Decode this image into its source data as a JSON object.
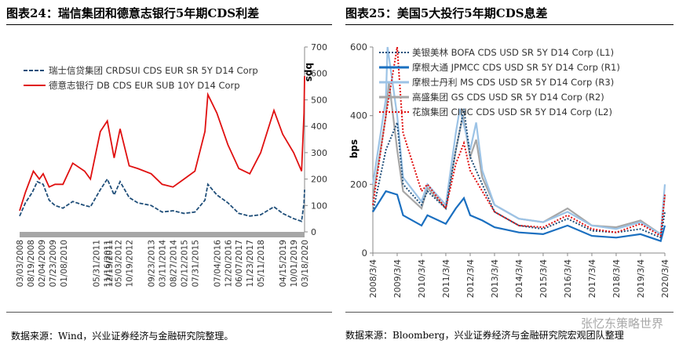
{
  "left": {
    "title": "图表24：瑞信集团和德意志银行5年期CDS利差",
    "source": "数据来源：Wind，兴业证券经济与金融研究院整理。",
    "chart_data": {
      "type": "line",
      "ylabel": "bps",
      "ylim": [
        0,
        700
      ],
      "yticks": [
        0,
        100,
        200,
        300,
        400,
        500,
        600,
        700
      ],
      "xlim": [
        "2008-03-03",
        "2020-03-18"
      ],
      "xticks": [
        "03/03/2008",
        "08/19/2008",
        "02/04/2009",
        "07/23/2009",
        "01/08/2010",
        "12/13/2011",
        "05/31/2011",
        "11/16/2011",
        "05/03/2012",
        "10/19/2012",
        "09/23/2013",
        "03/11/2014",
        "08/27/2014",
        "02/12/2015",
        "07/31/2015",
        "07/04/2016",
        "12/20/2016",
        "06/07/2017",
        "11/23/2017",
        "05/11/2018",
        "04/15/2019",
        "10/01/2019",
        "03/18/2020"
      ],
      "legend_position": "top-left",
      "series": [
        {
          "name": "瑞士信贷集团 CRDSUI CDS EUR SR 5Y D14 Corp",
          "color": "#1f4e79",
          "dash": true,
          "points": [
            [
              "2008-03-03",
              60
            ],
            [
              "2008-06-01",
              110
            ],
            [
              "2008-09-15",
              150
            ],
            [
              "2008-12-01",
              190
            ],
            [
              "2009-03-01",
              180
            ],
            [
              "2009-06-01",
              120
            ],
            [
              "2009-09-01",
              100
            ],
            [
              "2010-01-01",
              90
            ],
            [
              "2010-06-01",
              115
            ],
            [
              "2010-12-01",
              100
            ],
            [
              "2011-03-01",
              95
            ],
            [
              "2011-08-01",
              160
            ],
            [
              "2011-11-16",
              200
            ],
            [
              "2012-03-01",
              140
            ],
            [
              "2012-06-01",
              190
            ],
            [
              "2012-10-19",
              130
            ],
            [
              "2013-03-01",
              110
            ],
            [
              "2013-09-23",
              100
            ],
            [
              "2014-03-11",
              75
            ],
            [
              "2014-08-27",
              80
            ],
            [
              "2015-02-12",
              70
            ],
            [
              "2015-07-31",
              75
            ],
            [
              "2016-01-01",
              120
            ],
            [
              "2016-02-15",
              180
            ],
            [
              "2016-07-04",
              140
            ],
            [
              "2016-12-20",
              110
            ],
            [
              "2017-06-07",
              70
            ],
            [
              "2017-11-23",
              60
            ],
            [
              "2018-05-11",
              65
            ],
            [
              "2018-12-01",
              95
            ],
            [
              "2019-04-15",
              70
            ],
            [
              "2019-10-01",
              50
            ],
            [
              "2020-02-01",
              40
            ],
            [
              "2020-03-10",
              110
            ],
            [
              "2020-03-18",
              160
            ]
          ]
        },
        {
          "name": "德意志银行 DB CDS EUR SUB 10Y D14 Corp",
          "color": "#e01010",
          "dash": false,
          "points": [
            [
              "2008-03-03",
              80
            ],
            [
              "2008-06-01",
              150
            ],
            [
              "2008-10-01",
              230
            ],
            [
              "2009-01-01",
              200
            ],
            [
              "2009-03-01",
              220
            ],
            [
              "2009-06-01",
              170
            ],
            [
              "2009-09-01",
              180
            ],
            [
              "2010-01-01",
              180
            ],
            [
              "2010-06-01",
              260
            ],
            [
              "2010-12-01",
              230
            ],
            [
              "2011-03-01",
              200
            ],
            [
              "2011-08-01",
              380
            ],
            [
              "2011-11-16",
              420
            ],
            [
              "2012-03-01",
              280
            ],
            [
              "2012-06-01",
              390
            ],
            [
              "2012-10-19",
              250
            ],
            [
              "2013-03-01",
              240
            ],
            [
              "2013-09-23",
              220
            ],
            [
              "2014-03-11",
              180
            ],
            [
              "2014-08-27",
              170
            ],
            [
              "2015-02-12",
              200
            ],
            [
              "2015-07-31",
              230
            ],
            [
              "2016-01-01",
              380
            ],
            [
              "2016-02-15",
              520
            ],
            [
              "2016-07-04",
              450
            ],
            [
              "2016-12-20",
              330
            ],
            [
              "2017-06-07",
              240
            ],
            [
              "2017-11-23",
              220
            ],
            [
              "2018-05-11",
              300
            ],
            [
              "2018-12-01",
              460
            ],
            [
              "2019-04-15",
              370
            ],
            [
              "2019-10-01",
              300
            ],
            [
              "2020-02-01",
              230
            ],
            [
              "2020-03-10",
              450
            ],
            [
              "2020-03-18",
              590
            ]
          ]
        }
      ]
    }
  },
  "right": {
    "title": "图表25：美国5大投行5年期CDS息差",
    "source": "数据来源：Bloomberg，兴业证券经济与金融研究院宏观团队整理",
    "watermark": "张忆东策略世界",
    "chart_data": {
      "type": "line",
      "ylabel": "bps",
      "ylim": [
        0,
        600
      ],
      "yticks": [
        0,
        200,
        400,
        600
      ],
      "xlim": [
        "2008-03-04",
        "2020-03-04"
      ],
      "xticks": [
        "2008/3/4",
        "2009/3/4",
        "2010/3/4",
        "2011/3/4",
        "2012/3/4",
        "2013/3/4",
        "2014/3/4",
        "2015/3/4",
        "2016/3/4",
        "2017/3/4",
        "2018/3/4",
        "2019/3/4",
        "2020/3/4"
      ],
      "legend_position": "top-left",
      "series": [
        {
          "name": "美银美林 BOFA CDS USD SR 5Y D14 Corp (L1)",
          "color": "#1f4e79",
          "dash": "dot",
          "points": [
            [
              "2008-03-04",
              120
            ],
            [
              "2008-09-15",
              300
            ],
            [
              "2009-03-04",
              380
            ],
            [
              "2009-06-01",
              200
            ],
            [
              "2010-03-04",
              140
            ],
            [
              "2010-06-01",
              180
            ],
            [
              "2011-03-04",
              130
            ],
            [
              "2011-08-01",
              300
            ],
            [
              "2011-12-01",
              420
            ],
            [
              "2012-03-04",
              280
            ],
            [
              "2012-09-01",
              200
            ],
            [
              "2013-03-04",
              120
            ],
            [
              "2014-03-04",
              80
            ],
            [
              "2015-03-04",
              70
            ],
            [
              "2016-03-04",
              100
            ],
            [
              "2017-03-04",
              65
            ],
            [
              "2018-03-04",
              60
            ],
            [
              "2019-03-04",
              70
            ],
            [
              "2020-01-01",
              45
            ],
            [
              "2020-03-04",
              120
            ]
          ]
        },
        {
          "name": "摩根大通 JPMCC CDS USD SR 5Y D14 Corp (R1)",
          "color": "#1a6fc0",
          "dash": "",
          "points": [
            [
              "2008-03-04",
              120
            ],
            [
              "2008-09-15",
              180
            ],
            [
              "2009-03-04",
              170
            ],
            [
              "2009-06-01",
              110
            ],
            [
              "2010-03-04",
              80
            ],
            [
              "2010-06-01",
              110
            ],
            [
              "2011-03-04",
              85
            ],
            [
              "2011-08-01",
              130
            ],
            [
              "2011-12-01",
              160
            ],
            [
              "2012-03-04",
              110
            ],
            [
              "2012-09-01",
              95
            ],
            [
              "2013-03-04",
              75
            ],
            [
              "2014-03-04",
              60
            ],
            [
              "2015-03-04",
              55
            ],
            [
              "2016-03-04",
              80
            ],
            [
              "2017-03-04",
              50
            ],
            [
              "2018-03-04",
              45
            ],
            [
              "2019-03-04",
              55
            ],
            [
              "2020-01-01",
              35
            ],
            [
              "2020-03-04",
              80
            ]
          ]
        },
        {
          "name": "摩根士丹利 MS CDS USD SR 5Y D14 Corp (R3)",
          "color": "#9cc3e6",
          "dash": "",
          "points": [
            [
              "2008-03-04",
              200
            ],
            [
              "2008-09-15",
              450
            ],
            [
              "2008-10-10",
              600
            ],
            [
              "2009-03-04",
              400
            ],
            [
              "2009-06-01",
              220
            ],
            [
              "2010-03-04",
              150
            ],
            [
              "2010-06-01",
              200
            ],
            [
              "2011-03-04",
              140
            ],
            [
              "2011-08-01",
              350
            ],
            [
              "2011-10-01",
              420
            ],
            [
              "2012-03-04",
              300
            ],
            [
              "2012-06-01",
              380
            ],
            [
              "2012-09-01",
              240
            ],
            [
              "2013-03-04",
              140
            ],
            [
              "2014-03-04",
              100
            ],
            [
              "2015-03-04",
              90
            ],
            [
              "2016-03-04",
              120
            ],
            [
              "2017-03-04",
              80
            ],
            [
              "2018-03-04",
              70
            ],
            [
              "2019-03-04",
              90
            ],
            [
              "2020-01-01",
              55
            ],
            [
              "2020-03-04",
              200
            ]
          ]
        },
        {
          "name": "高盛集团 GS CDS USD SR 5Y D14 Corp (R2)",
          "color": "#a6a6a6",
          "dash": "",
          "points": [
            [
              "2008-03-04",
              160
            ],
            [
              "2008-09-15",
              400
            ],
            [
              "2008-11-01",
              500
            ],
            [
              "2009-03-04",
              300
            ],
            [
              "2009-06-01",
              180
            ],
            [
              "2010-03-04",
              130
            ],
            [
              "2010-06-01",
              190
            ],
            [
              "2011-03-04",
              130
            ],
            [
              "2011-08-01",
              300
            ],
            [
              "2011-11-16",
              400
            ],
            [
              "2012-03-04",
              280
            ],
            [
              "2012-06-01",
              330
            ],
            [
              "2012-09-01",
              220
            ],
            [
              "2013-03-04",
              140
            ],
            [
              "2014-03-04",
              100
            ],
            [
              "2015-03-04",
              90
            ],
            [
              "2016-03-04",
              130
            ],
            [
              "2017-03-04",
              80
            ],
            [
              "2018-03-04",
              75
            ],
            [
              "2019-03-04",
              95
            ],
            [
              "2020-01-01",
              55
            ],
            [
              "2020-03-04",
              170
            ]
          ]
        },
        {
          "name": "花旗集团 CINC CDS USD SR 5Y D14 Corp (L2)",
          "color": "#e01010",
          "dash": "dot",
          "points": [
            [
              "2008-03-04",
              140
            ],
            [
              "2008-09-15",
              400
            ],
            [
              "2009-03-04",
              600
            ],
            [
              "2009-06-01",
              350
            ],
            [
              "2010-03-04",
              180
            ],
            [
              "2010-06-01",
              200
            ],
            [
              "2011-03-04",
              130
            ],
            [
              "2011-08-01",
              260
            ],
            [
              "2011-12-01",
              320
            ],
            [
              "2012-03-04",
              240
            ],
            [
              "2012-09-01",
              180
            ],
            [
              "2013-03-04",
              120
            ],
            [
              "2014-03-04",
              80
            ],
            [
              "2015-03-04",
              75
            ],
            [
              "2016-03-04",
              110
            ],
            [
              "2017-03-04",
              70
            ],
            [
              "2018-03-04",
              60
            ],
            [
              "2019-03-04",
              85
            ],
            [
              "2020-01-01",
              50
            ],
            [
              "2020-03-04",
              170
            ]
          ]
        }
      ]
    }
  }
}
